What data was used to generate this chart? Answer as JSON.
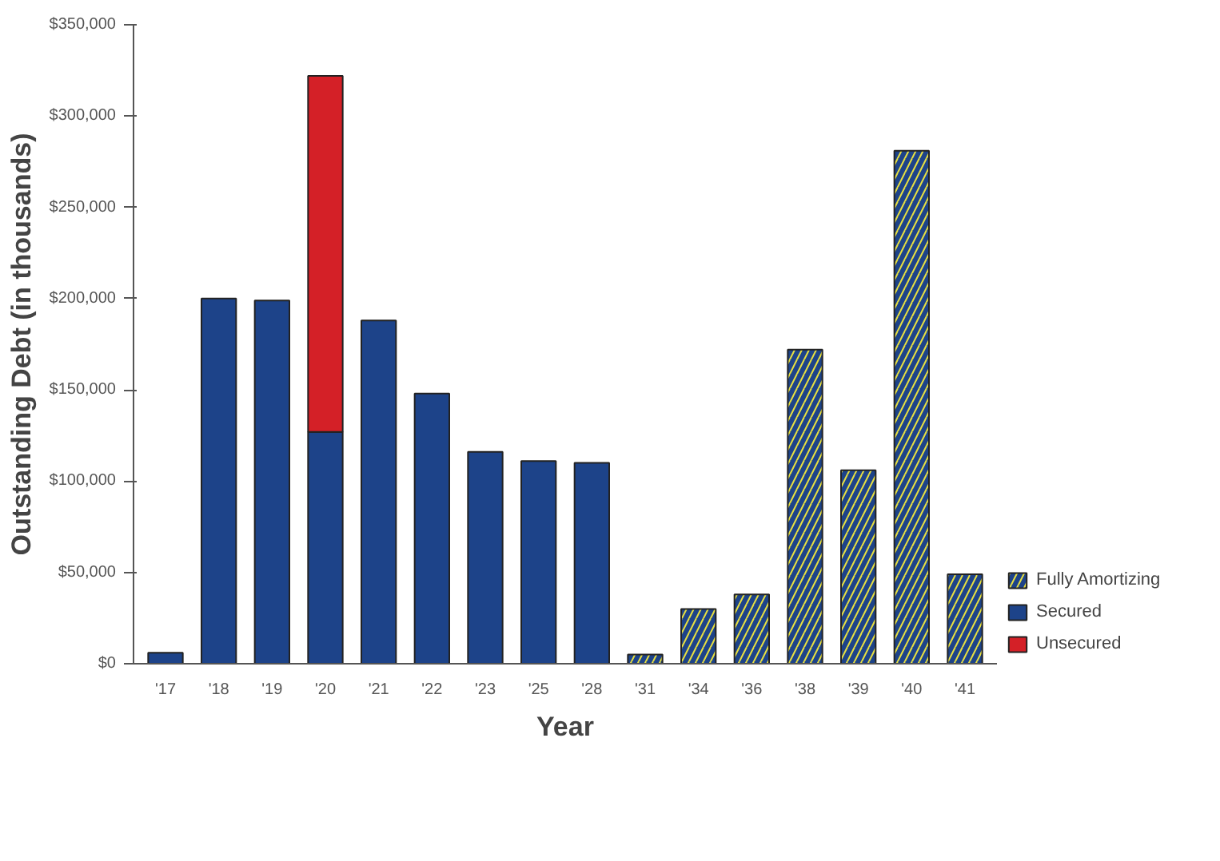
{
  "chart_data": {
    "type": "bar",
    "stacked": true,
    "xlabel": "Year",
    "ylabel": "Outstanding Debt (in thousands)",
    "categories": [
      "'17",
      "'18",
      "'19",
      "'20",
      "'21",
      "'22",
      "'23",
      "'25",
      "'28",
      "'31",
      "'34",
      "'36",
      "'38",
      "'39",
      "'40",
      "'41"
    ],
    "series": [
      {
        "name": "Fully Amortizing",
        "color": "#1d4389",
        "values": [
          null,
          null,
          null,
          null,
          null,
          null,
          null,
          null,
          null,
          5000,
          30000,
          38000,
          172000,
          106000,
          281000,
          49000
        ]
      },
      {
        "name": "Secured",
        "color": "#1d4389",
        "values": [
          6000,
          200000,
          199000,
          127000,
          188000,
          148000,
          116000,
          111000,
          110000,
          null,
          null,
          null,
          null,
          null,
          null,
          null
        ]
      },
      {
        "name": "Unsecured",
        "color": "#d42027",
        "values": [
          null,
          null,
          null,
          195000,
          null,
          null,
          null,
          null,
          null,
          null,
          null,
          null,
          null,
          null,
          null,
          null
        ]
      }
    ],
    "ylim": [
      0,
      350000
    ],
    "yticks": [
      {
        "value": 0,
        "label": "$0"
      },
      {
        "value": 50000,
        "label": "$50,000"
      },
      {
        "value": 100000,
        "label": "$100,000"
      },
      {
        "value": 150000,
        "label": "$150,000"
      },
      {
        "value": 200000,
        "label": "$200,000"
      },
      {
        "value": 250000,
        "label": "$250,000"
      },
      {
        "value": 300000,
        "label": "$300,000"
      },
      {
        "value": 350000,
        "label": "$350,000"
      }
    ],
    "grid": false,
    "legend": "bottom right"
  }
}
